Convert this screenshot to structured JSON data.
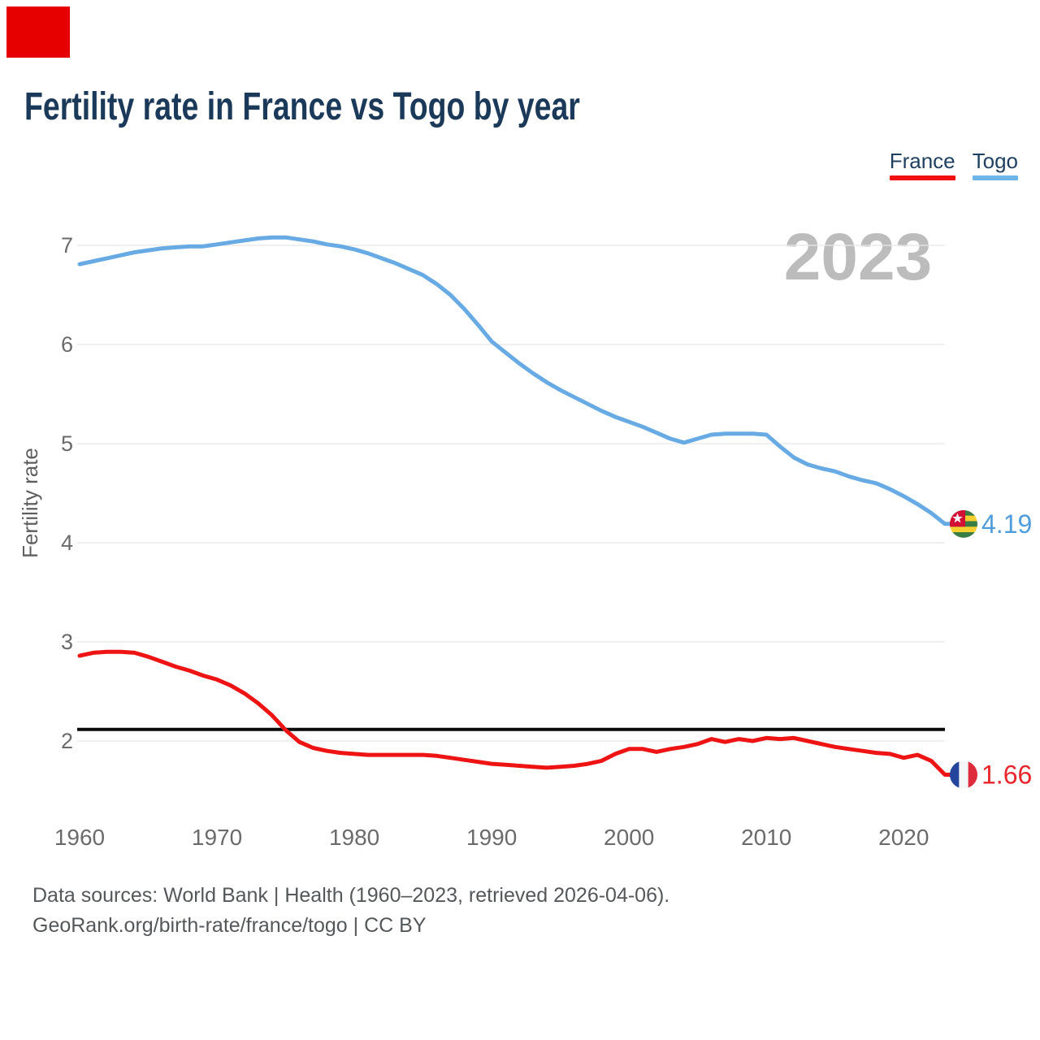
{
  "marker_color": "#e60000",
  "header": {
    "title": "Fertility rate in France vs Togo by year"
  },
  "legend": [
    {
      "label": "France",
      "color": "#f01010"
    },
    {
      "label": "Togo",
      "color": "#6db4e8"
    }
  ],
  "watermark": "2023",
  "footer": {
    "line1": "Data sources: World Bank | Health (1960–2023, retrieved 2026-04-06).",
    "line2": "GeoRank.org/birth-rate/france/togo | CC BY"
  },
  "colors": {
    "grid": "#e8e8e8",
    "tick": "#6b6b6b",
    "axis_title": "#5e5e5e",
    "watermark": "#bcbcbc",
    "reference_line": "#0a0a0a",
    "title": "#1b3a5a",
    "footer": "#54585b"
  },
  "chart_data": {
    "type": "line",
    "title": "Fertility rate in France vs Togo by year",
    "xlabel": "",
    "ylabel": "Fertility rate",
    "x_range": [
      1960,
      2023
    ],
    "ylim": [
      1.3,
      7.4
    ],
    "yticks": [
      7,
      6,
      5,
      4,
      3,
      2
    ],
    "xticks": [
      1960,
      1970,
      1980,
      1990,
      2000,
      2010,
      2020
    ],
    "grid": "horizontal",
    "legend_position": "top-right",
    "reference_line": 2.1,
    "series": [
      {
        "name": "Togo",
        "color": "#68aae3",
        "label_color": "#509ddb",
        "end_label": "4.19",
        "flag_icon": "togo-flag",
        "values": [
          6.81,
          6.84,
          6.87,
          6.9,
          6.93,
          6.95,
          6.97,
          6.98,
          6.99,
          6.99,
          7.01,
          7.03,
          7.05,
          7.07,
          7.08,
          7.08,
          7.06,
          7.04,
          7.01,
          6.99,
          6.96,
          6.92,
          6.87,
          6.82,
          6.76,
          6.7,
          6.61,
          6.5,
          6.36,
          6.2,
          6.03,
          5.92,
          5.81,
          5.71,
          5.62,
          5.54,
          5.47,
          5.4,
          5.33,
          5.27,
          5.22,
          5.17,
          5.11,
          5.05,
          5.01,
          5.05,
          5.09,
          5.1,
          5.1,
          5.1,
          5.09,
          4.97,
          4.86,
          4.79,
          4.75,
          4.72,
          4.67,
          4.63,
          4.6,
          4.54,
          4.47,
          4.39,
          4.3,
          4.19
        ]
      },
      {
        "name": "France",
        "color": "#ee1414",
        "label_color": "#e8262b",
        "end_label": "1.66",
        "flag_icon": "france-flag",
        "values": [
          2.86,
          2.89,
          2.9,
          2.9,
          2.89,
          2.85,
          2.8,
          2.75,
          2.71,
          2.66,
          2.62,
          2.56,
          2.48,
          2.38,
          2.26,
          2.11,
          1.99,
          1.93,
          1.9,
          1.88,
          1.87,
          1.86,
          1.86,
          1.86,
          1.86,
          1.86,
          1.85,
          1.83,
          1.81,
          1.79,
          1.77,
          1.76,
          1.75,
          1.74,
          1.73,
          1.74,
          1.75,
          1.77,
          1.8,
          1.87,
          1.92,
          1.92,
          1.89,
          1.92,
          1.94,
          1.97,
          2.02,
          1.99,
          2.02,
          2.0,
          2.03,
          2.02,
          2.03,
          2.0,
          1.97,
          1.94,
          1.92,
          1.9,
          1.88,
          1.87,
          1.83,
          1.86,
          1.8,
          1.66
        ]
      }
    ]
  }
}
